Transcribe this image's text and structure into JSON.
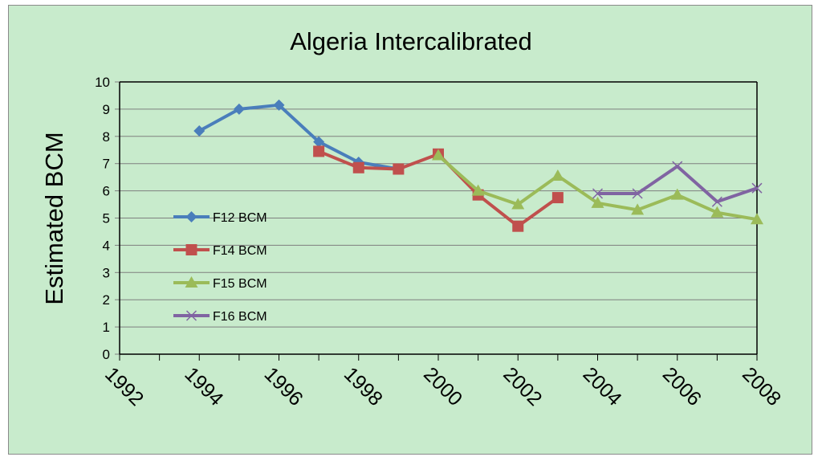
{
  "chart_data": {
    "type": "line",
    "title": "Algeria Intercalibrated",
    "xlabel": "",
    "ylabel": "Estimated BCM",
    "x_ticks": [
      "1992",
      "1994",
      "1996",
      "1998",
      "2000",
      "2002",
      "2004",
      "2006",
      "2008"
    ],
    "y_ticks": [
      "0",
      "1",
      "2",
      "3",
      "4",
      "5",
      "6",
      "7",
      "8",
      "9",
      "10"
    ],
    "xlim": [
      1992,
      2008
    ],
    "ylim": [
      0,
      10
    ],
    "grid": "horizontal",
    "legend_position": "left-inside",
    "series": [
      {
        "name": "F12 BCM",
        "color": "#4a7ebb",
        "marker": "diamond",
        "points": [
          [
            1994,
            8.2
          ],
          [
            1995,
            9.0
          ],
          [
            1996,
            9.15
          ],
          [
            1997,
            7.8
          ],
          [
            1998,
            7.05
          ],
          [
            1999,
            6.8
          ]
        ]
      },
      {
        "name": "F14 BCM",
        "color": "#c0504d",
        "marker": "square",
        "points": [
          [
            1997,
            7.45
          ],
          [
            1998,
            6.85
          ],
          [
            1999,
            6.8
          ],
          [
            2000,
            7.35
          ],
          [
            2001,
            5.85
          ],
          [
            2002,
            4.7
          ],
          [
            2003,
            5.75
          ]
        ]
      },
      {
        "name": "F15 BCM",
        "color": "#9bbb59",
        "marker": "triangle",
        "points": [
          [
            2000,
            7.3
          ],
          [
            2001,
            6.0
          ],
          [
            2002,
            5.5
          ],
          [
            2003,
            6.55
          ],
          [
            2004,
            5.55
          ],
          [
            2005,
            5.3
          ],
          [
            2006,
            5.85
          ],
          [
            2007,
            5.2
          ],
          [
            2008,
            4.95
          ]
        ]
      },
      {
        "name": "F16 BCM",
        "color": "#8064a2",
        "marker": "x",
        "points": [
          [
            2004,
            5.9
          ],
          [
            2005,
            5.9
          ],
          [
            2006,
            6.9
          ],
          [
            2007,
            5.6
          ],
          [
            2008,
            6.1
          ]
        ]
      }
    ]
  }
}
